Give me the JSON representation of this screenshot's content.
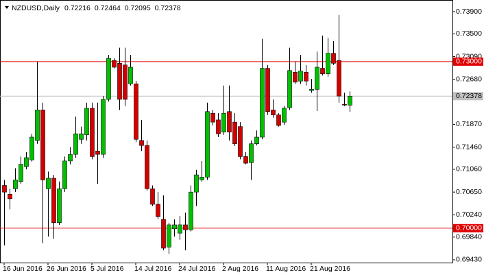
{
  "chart_data": {
    "type": "candlestick",
    "symbol": "NZDUSD,Daily",
    "categories": [
      "16 Jun 2016",
      null,
      null,
      null,
      null,
      null,
      null,
      null,
      "26 Jun 2016",
      null,
      null,
      null,
      null,
      null,
      null,
      null,
      "5 Jul 2016",
      null,
      null,
      null,
      null,
      null,
      null,
      null,
      "14 Jul 2016",
      null,
      null,
      null,
      null,
      null,
      null,
      null,
      "24 Jul 2016",
      null,
      null,
      null,
      null,
      null,
      null,
      null,
      "2 Aug 2016",
      null,
      null,
      null,
      null,
      null,
      null,
      null,
      "11 Aug 2016",
      null,
      null,
      null,
      null,
      null,
      null,
      null,
      "21 Aug 2016",
      null,
      null,
      null,
      null,
      null,
      null,
      null
    ],
    "open": [
      0.7077,
      0.7061,
      0.7071,
      0.7084,
      0.7111,
      0.7123,
      0.7158,
      0.7213,
      0.7071,
      0.709,
      0.701,
      0.7071,
      0.7121,
      0.7133,
      0.716,
      0.7168,
      0.7216,
      0.7139,
      0.7133,
      0.7232,
      0.7302,
      0.7297,
      0.7294,
      0.726,
      0.726,
      0.7158,
      0.7149,
      0.7071,
      0.7043,
      0.7016,
      0.6966,
      0.6999,
      0.6991,
      0.7006,
      0.6997,
      0.7065,
      0.7087,
      0.7092,
      0.7207,
      0.7195,
      0.7173,
      0.721,
      0.7191,
      0.7183,
      0.7129,
      0.7118,
      0.7152,
      0.7164,
      0.7288,
      0.7213,
      0.7204,
      0.7191,
      0.7217,
      0.7281,
      0.7265,
      0.7281,
      0.7248,
      0.725,
      0.7288,
      0.7278,
      0.7315,
      0.7302,
      0.7223,
      0.72216
    ],
    "high": [
      0.7087,
      0.7071,
      0.7108,
      0.7129,
      0.7137,
      0.717,
      0.73,
      0.7226,
      0.7102,
      0.7096,
      0.7084,
      0.7129,
      0.7146,
      0.7201,
      0.7183,
      0.7226,
      0.7226,
      0.7226,
      0.7238,
      0.7312,
      0.7306,
      0.7325,
      0.7325,
      0.7312,
      0.7265,
      0.7195,
      0.7158,
      0.7077,
      0.7065,
      0.7059,
      0.701,
      0.7016,
      0.7022,
      0.7028,
      0.7077,
      0.7105,
      0.7121,
      0.7226,
      0.7213,
      0.7207,
      0.7257,
      0.7257,
      0.7207,
      0.7191,
      0.7137,
      0.7158,
      0.7176,
      0.7341,
      0.7294,
      0.7232,
      0.7207,
      0.722,
      0.7325,
      0.73,
      0.7312,
      0.7294,
      0.7269,
      0.7318,
      0.7347,
      0.7343,
      0.7337,
      0.7384,
      0.7244,
      0.72464
    ],
    "low": [
      0.6969,
      0.7034,
      0.7065,
      0.708,
      0.7106,
      0.712,
      0.7152,
      0.6973,
      0.6985,
      0.6981,
      0.7006,
      0.7065,
      0.7115,
      0.7127,
      0.7152,
      0.7158,
      0.7124,
      0.708,
      0.7127,
      0.7228,
      0.7288,
      0.7213,
      0.722,
      0.7257,
      0.7155,
      0.7139,
      0.7068,
      0.704,
      0.7016,
      0.696,
      0.6954,
      0.6985,
      0.6979,
      0.696,
      0.6994,
      0.704,
      0.7084,
      0.7087,
      0.7185,
      0.7164,
      0.7168,
      0.7158,
      0.7148,
      0.7124,
      0.7115,
      0.7087,
      0.7149,
      0.716,
      0.7204,
      0.7199,
      0.7183,
      0.7186,
      0.7213,
      0.726,
      0.726,
      0.7257,
      0.7244,
      0.7211,
      0.7275,
      0.7273,
      0.7294,
      0.7226,
      0.722,
      0.72095
    ],
    "close": [
      0.7065,
      0.7053,
      0.7087,
      0.7115,
      0.7127,
      0.7164,
      0.7213,
      0.7087,
      0.709,
      0.701,
      0.7071,
      0.7121,
      0.7133,
      0.717,
      0.717,
      0.7216,
      0.7129,
      0.7133,
      0.7232,
      0.7306,
      0.729,
      0.7232,
      0.7232,
      0.729,
      0.716,
      0.7149,
      0.7071,
      0.7043,
      0.7021,
      0.6964,
      0.7006,
      0.7006,
      0.7006,
      0.6997,
      0.7065,
      0.7096,
      0.7092,
      0.721,
      0.7191,
      0.717,
      0.7207,
      0.7173,
      0.7152,
      0.7129,
      0.7117,
      0.7152,
      0.7164,
      0.7288,
      0.721,
      0.7204,
      0.7185,
      0.7216,
      0.7284,
      0.7263,
      0.7283,
      0.7265,
      0.725,
      0.729,
      0.7278,
      0.7315,
      0.7297,
      0.7238,
      0.7222,
      0.72378
    ],
    "bull_color": "#00c000",
    "bear_color": "#d40000",
    "ylim": [
      0.6938,
      0.7411
    ],
    "yticks": [
      {
        "value": 0.739,
        "label": "0.73900"
      },
      {
        "value": 0.735,
        "label": "0.73500"
      },
      {
        "value": 0.7309,
        "label": "0.73090"
      },
      {
        "value": 0.7268,
        "label": "0.72680"
      },
      {
        "value": 0.7187,
        "label": "0.71870"
      },
      {
        "value": 0.7146,
        "label": "0.71460"
      },
      {
        "value": 0.7106,
        "label": "0.71060"
      },
      {
        "value": 0.7065,
        "label": "0.70650"
      },
      {
        "value": 0.7024,
        "label": "0.70240"
      },
      {
        "value": 0.6984,
        "label": "0.69840"
      },
      {
        "value": 0.6943,
        "label": "0.69430"
      }
    ],
    "hlines": [
      {
        "value": 0.73,
        "label": "0.73000",
        "color": "#e00000"
      },
      {
        "value": 0.7,
        "label": "0.70000",
        "color": "#e00000"
      }
    ],
    "last_price_color": "#c0c0c0"
  }
}
